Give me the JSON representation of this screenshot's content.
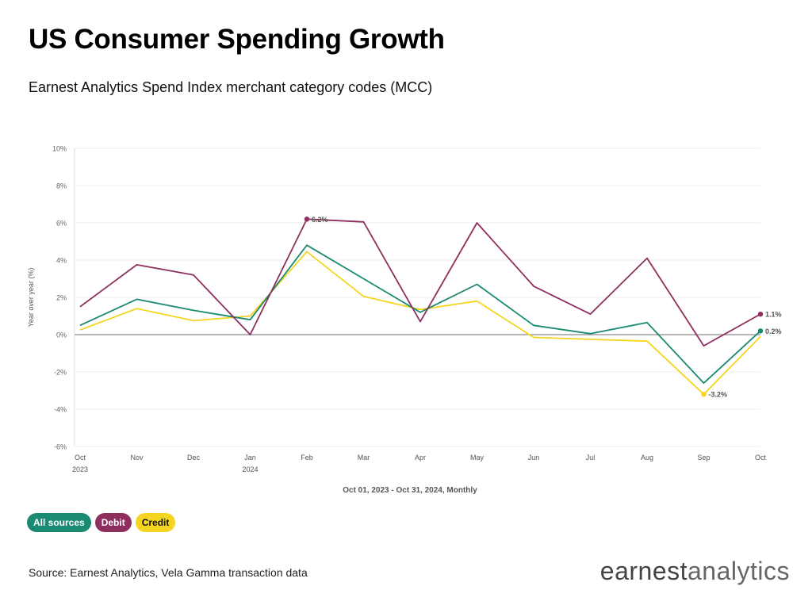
{
  "title": "US Consumer Spending Growth",
  "subtitle": "Earnest Analytics Spend Index merchant category codes (MCC)",
  "source": "Source: Earnest Analytics, Vela Gamma transaction data",
  "logo": {
    "part1": "earnest",
    "part2": "analytics"
  },
  "legend": [
    {
      "label": "All sources",
      "color": "#1b8a73",
      "text_color": "#ffffff"
    },
    {
      "label": "Debit",
      "color": "#8e2f5f",
      "text_color": "#ffffff"
    },
    {
      "label": "Credit",
      "color": "#f5d422",
      "text_color": "#111111"
    }
  ],
  "chart_data": {
    "type": "line",
    "title": "",
    "xlabel": "Oct 01, 2023 - Oct 31, 2024, Monthly",
    "ylabel": "Year over year (%)",
    "ylim": [
      -6,
      10
    ],
    "yticks": [
      10,
      8,
      6,
      4,
      2,
      0,
      -2,
      -4,
      -6
    ],
    "ytick_labels": [
      "10%",
      "8%",
      "6%",
      "4%",
      "2%",
      "0%",
      "-2%",
      "-4%",
      "-6%"
    ],
    "grid": true,
    "categories": [
      "Oct",
      "Nov",
      "Dec",
      "Jan",
      "Feb",
      "Mar",
      "Apr",
      "May",
      "Jun",
      "Jul",
      "Aug",
      "Sep",
      "Oct"
    ],
    "category_sublabels": [
      "2023",
      "",
      "",
      "2024",
      "",
      "",
      "",
      "",
      "",
      "",
      "",
      "",
      ""
    ],
    "series": [
      {
        "name": "All sources",
        "color": "#1b8a73",
        "values": [
          0.5,
          1.9,
          1.3,
          0.8,
          4.8,
          3.0,
          1.2,
          2.7,
          0.5,
          0.05,
          0.65,
          -2.6,
          0.2
        ]
      },
      {
        "name": "Debit",
        "color": "#8e2f5f",
        "values": [
          1.5,
          3.75,
          3.2,
          0.0,
          6.2,
          6.05,
          0.7,
          6.0,
          2.6,
          1.1,
          4.1,
          -0.6,
          1.1
        ]
      },
      {
        "name": "Credit",
        "color": "#f5d422",
        "values": [
          0.25,
          1.4,
          0.75,
          1.0,
          4.45,
          2.05,
          1.35,
          1.8,
          -0.15,
          -0.25,
          -0.35,
          -3.2,
          -0.1
        ]
      }
    ],
    "annotations": [
      {
        "series": "Debit",
        "index": 4,
        "text": "6.2%"
      },
      {
        "series": "Debit",
        "index": 12,
        "text": "1.1%"
      },
      {
        "series": "All sources",
        "index": 12,
        "text": "0.2%"
      },
      {
        "series": "Credit",
        "index": 11,
        "text": "-3.2%"
      }
    ]
  }
}
